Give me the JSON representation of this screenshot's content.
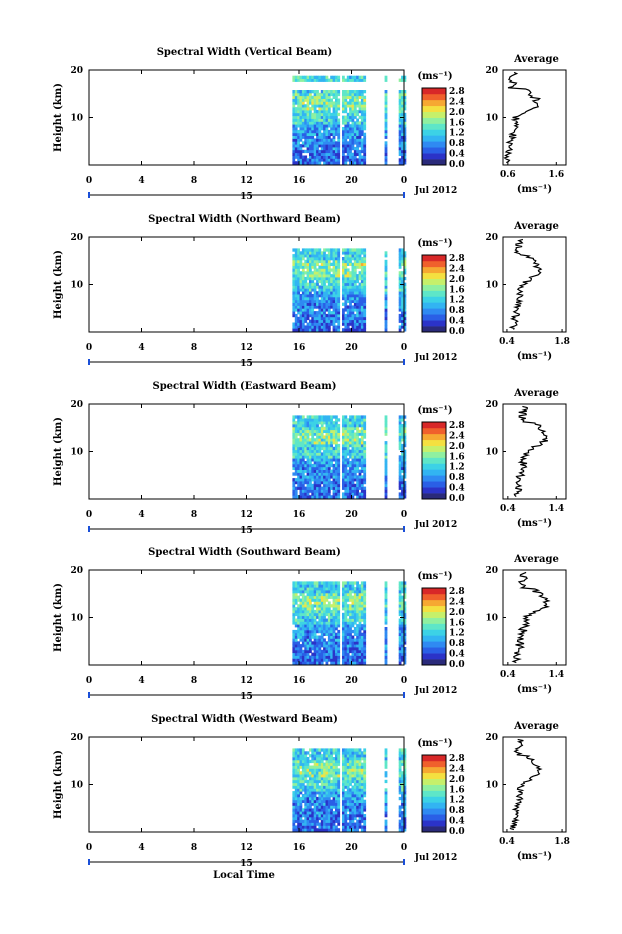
{
  "figure": {
    "xlabel": "Local Time",
    "date_label": "Jul 2012",
    "day_label": "15",
    "unit_label": "(ms⁻¹)"
  },
  "colormap": [
    "#2a2a7a",
    "#2b33c8",
    "#2a5fe6",
    "#2f8af2",
    "#32b4f2",
    "#3cd2e6",
    "#5ee6c8",
    "#8ff0a0",
    "#c6f06a",
    "#f4e040",
    "#f6a832",
    "#f0602c",
    "#d82828"
  ],
  "chart_data": [
    {
      "type": "heatmap",
      "title": "Spectral Width (Vertical Beam)",
      "ylabel": "Height (km)",
      "xlabel": "Local Time",
      "x_ticks": [
        "0",
        "4",
        "8",
        "12",
        "16",
        "20",
        "0"
      ],
      "y_ticks": [
        "20",
        "10"
      ],
      "xlim": [
        0,
        24
      ],
      "ylim": [
        0,
        20
      ],
      "colorbar": {
        "label": "(ms⁻¹)",
        "ticks": [
          "2.8",
          "2.4",
          "2.0",
          "1.6",
          "1.2",
          "0.8",
          "0.4",
          "0.0"
        ],
        "range": [
          0,
          2.8
        ]
      },
      "data_gaps_hours": [
        [
          17.5,
          17.6
        ],
        [
          19.0,
          19.1
        ],
        [
          20.6,
          20.7
        ],
        [
          21.0,
          22.4
        ],
        [
          22.6,
          23.5
        ]
      ],
      "average_profile": {
        "title": "Average",
        "x_ticks": [
          "0.6",
          "1.6"
        ],
        "xlim": [
          0.5,
          1.8
        ],
        "y_ticks": [
          "20",
          "10"
        ],
        "xlabel": "(ms⁻¹)"
      }
    },
    {
      "type": "heatmap",
      "title": "Spectral Width (Northward Beam)",
      "ylabel": "Height (km)",
      "xlabel": "Local Time",
      "x_ticks": [
        "0",
        "4",
        "8",
        "12",
        "16",
        "20",
        "0"
      ],
      "y_ticks": [
        "20",
        "10"
      ],
      "xlim": [
        0,
        24
      ],
      "ylim": [
        0,
        20
      ],
      "colorbar": {
        "label": "(ms⁻¹)",
        "ticks": [
          "2.8",
          "2.4",
          "2.0",
          "1.6",
          "1.2",
          "0.8",
          "0.4",
          "0.0"
        ],
        "range": [
          0,
          2.8
        ]
      },
      "data_gaps_hours": [
        [
          17.5,
          17.6
        ],
        [
          19.0,
          19.1
        ],
        [
          20.6,
          20.7
        ],
        [
          21.0,
          22.4
        ],
        [
          22.6,
          23.5
        ]
      ],
      "average_profile": {
        "title": "Average",
        "x_ticks": [
          "0.4",
          "1.8"
        ],
        "xlim": [
          0.3,
          1.9
        ],
        "y_ticks": [
          "20",
          "10"
        ],
        "xlabel": "(ms⁻¹)"
      }
    },
    {
      "type": "heatmap",
      "title": "Spectral Width (Eastward Beam)",
      "ylabel": "Height (km)",
      "xlabel": "Local Time",
      "x_ticks": [
        "0",
        "4",
        "8",
        "12",
        "16",
        "20",
        "0"
      ],
      "y_ticks": [
        "20",
        "10"
      ],
      "xlim": [
        0,
        24
      ],
      "ylim": [
        0,
        20
      ],
      "colorbar": {
        "label": "(ms⁻¹)",
        "ticks": [
          "2.8",
          "2.4",
          "2.0",
          "1.6",
          "1.2",
          "0.8",
          "0.4",
          "0.0"
        ],
        "range": [
          0,
          2.8
        ]
      },
      "data_gaps_hours": [
        [
          17.5,
          17.6
        ],
        [
          19.0,
          19.1
        ],
        [
          20.6,
          20.7
        ],
        [
          21.0,
          22.4
        ],
        [
          22.6,
          23.5
        ]
      ],
      "average_profile": {
        "title": "Average",
        "x_ticks": [
          "0.4",
          "1.4"
        ],
        "xlim": [
          0.3,
          1.6
        ],
        "y_ticks": [
          "20",
          "10"
        ],
        "xlabel": "(ms⁻¹)"
      }
    },
    {
      "type": "heatmap",
      "title": "Spectral Width (Southward Beam)",
      "ylabel": "Height (km)",
      "xlabel": "Local Time",
      "x_ticks": [
        "0",
        "4",
        "8",
        "12",
        "16",
        "20",
        "0"
      ],
      "y_ticks": [
        "20",
        "10"
      ],
      "xlim": [
        0,
        24
      ],
      "ylim": [
        0,
        20
      ],
      "colorbar": {
        "label": "(ms⁻¹)",
        "ticks": [
          "2.8",
          "2.4",
          "2.0",
          "1.6",
          "1.2",
          "0.8",
          "0.4",
          "0.0"
        ],
        "range": [
          0,
          2.8
        ]
      },
      "data_gaps_hours": [
        [
          17.5,
          17.6
        ],
        [
          19.0,
          19.1
        ],
        [
          20.6,
          20.7
        ],
        [
          21.0,
          22.4
        ],
        [
          22.6,
          23.5
        ]
      ],
      "average_profile": {
        "title": "Average",
        "x_ticks": [
          "0.4",
          "1.4"
        ],
        "xlim": [
          0.3,
          1.6
        ],
        "y_ticks": [
          "20",
          "10"
        ],
        "xlabel": "(ms⁻¹)"
      }
    },
    {
      "type": "heatmap",
      "title": "Spectral Width (Westward Beam)",
      "ylabel": "Height (km)",
      "xlabel": "Local Time",
      "x_ticks": [
        "0",
        "4",
        "8",
        "12",
        "16",
        "20",
        "0"
      ],
      "y_ticks": [
        "20",
        "10"
      ],
      "xlim": [
        0,
        24
      ],
      "ylim": [
        0,
        20
      ],
      "colorbar": {
        "label": "(ms⁻¹)",
        "ticks": [
          "2.8",
          "2.4",
          "2.0",
          "1.6",
          "1.2",
          "0.8",
          "0.4",
          "0.0"
        ],
        "range": [
          0,
          2.8
        ]
      },
      "data_gaps_hours": [
        [
          17.5,
          17.6
        ],
        [
          19.0,
          19.1
        ],
        [
          20.6,
          20.7
        ],
        [
          21.0,
          22.4
        ],
        [
          22.6,
          23.5
        ]
      ],
      "average_profile": {
        "title": "Average",
        "x_ticks": [
          "0.4",
          "1.8"
        ],
        "xlim": [
          0.3,
          1.9
        ],
        "y_ticks": [
          "20",
          "10"
        ],
        "xlabel": "(ms⁻¹)"
      }
    }
  ]
}
